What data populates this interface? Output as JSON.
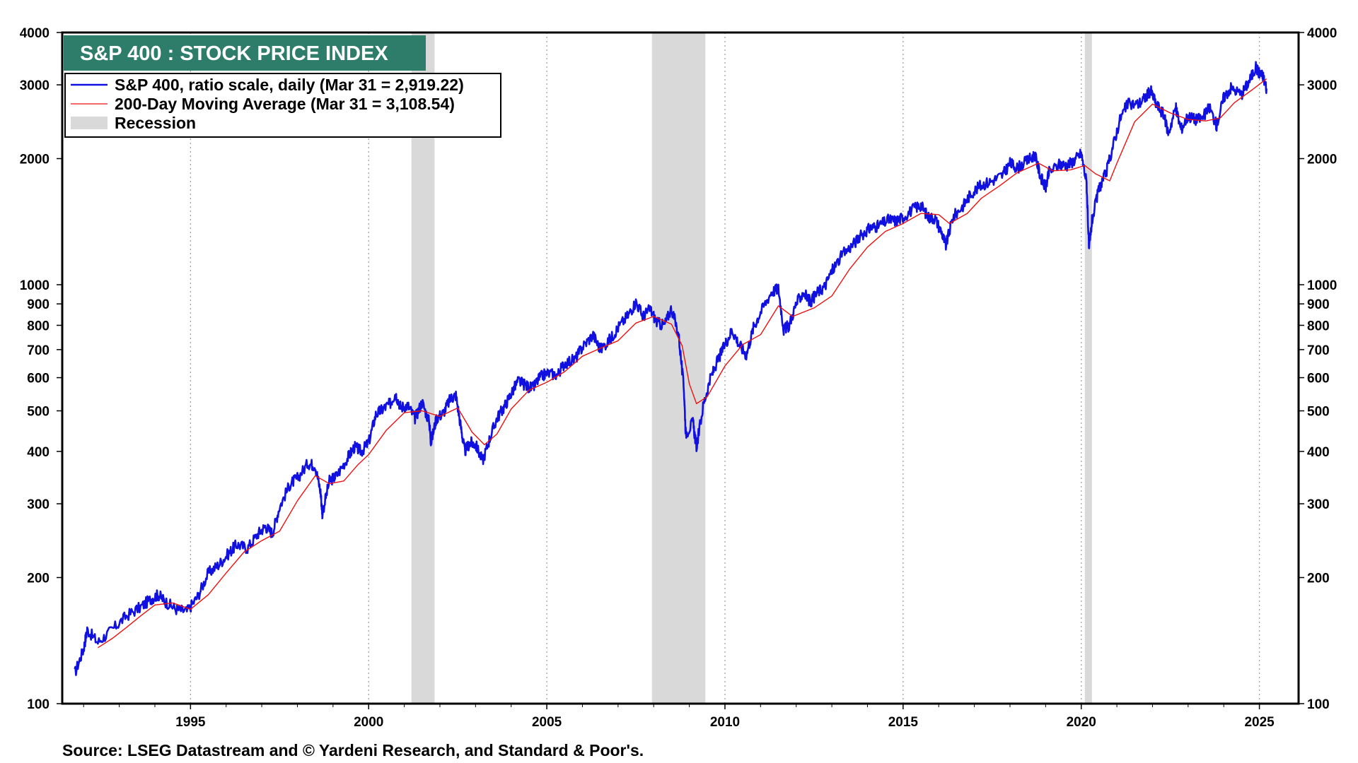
{
  "chart_data": {
    "type": "line",
    "title": "S&P 400 : STOCK PRICE INDEX",
    "source": "Source: LSEG Datastream and © Yardeni Research, and Standard & Poor's.",
    "y_scale": "log",
    "ylim": [
      100,
      4000
    ],
    "xlim": [
      1991.4,
      2026.1
    ],
    "y_ticks": [
      100,
      200,
      300,
      400,
      500,
      600,
      700,
      800,
      900,
      1000,
      2000,
      3000,
      4000
    ],
    "x_ticks": [
      1995,
      2000,
      2005,
      2010,
      2015,
      2020,
      2025
    ],
    "grid": "vertical-dotted",
    "legend_position": "top-left",
    "colors": {
      "index": "#1010e0",
      "moving_average": "#ee1111",
      "recession": "#d9d9d9",
      "title_bg": "#2e7d6b"
    },
    "legend": [
      {
        "label": "S&P 400, ratio scale, daily (Mar 31 = 2,919.22)",
        "color": "#1010e0",
        "kind": "line"
      },
      {
        "label": "200-Day Moving Average (Mar 31 = 3,108.54)",
        "color": "#ee1111",
        "kind": "thin-line"
      },
      {
        "label": "Recession",
        "color": "#d9d9d9",
        "kind": "band"
      }
    ],
    "recessions": [
      {
        "start": 2001.2,
        "end": 2001.85
      },
      {
        "start": 2007.95,
        "end": 2009.45
      },
      {
        "start": 2020.1,
        "end": 2020.3
      }
    ],
    "series": [
      {
        "name": "S&P 400, ratio scale, daily (Mar 31 = 2,919.22)",
        "color": "#1010e0",
        "points": [
          [
            1991.75,
            118
          ],
          [
            1992.0,
            135
          ],
          [
            1992.1,
            150
          ],
          [
            1992.4,
            140
          ],
          [
            1992.8,
            150
          ],
          [
            1993.2,
            162
          ],
          [
            1993.6,
            170
          ],
          [
            1993.9,
            178
          ],
          [
            1994.1,
            182
          ],
          [
            1994.3,
            175
          ],
          [
            1994.6,
            168
          ],
          [
            1994.9,
            166
          ],
          [
            1995.2,
            180
          ],
          [
            1995.5,
            205
          ],
          [
            1995.8,
            215
          ],
          [
            1996.1,
            230
          ],
          [
            1996.3,
            240
          ],
          [
            1996.6,
            235
          ],
          [
            1996.9,
            255
          ],
          [
            1997.1,
            265
          ],
          [
            1997.3,
            255
          ],
          [
            1997.5,
            295
          ],
          [
            1997.8,
            335
          ],
          [
            1998.0,
            345
          ],
          [
            1998.3,
            375
          ],
          [
            1998.5,
            370
          ],
          [
            1998.65,
            320
          ],
          [
            1998.7,
            285
          ],
          [
            1998.9,
            340
          ],
          [
            1999.1,
            350
          ],
          [
            1999.4,
            385
          ],
          [
            1999.6,
            410
          ],
          [
            1999.8,
            400
          ],
          [
            2000.0,
            420
          ],
          [
            2000.2,
            490
          ],
          [
            2000.4,
            505
          ],
          [
            2000.6,
            520
          ],
          [
            2000.75,
            550
          ],
          [
            2000.9,
            510
          ],
          [
            2001.1,
            515
          ],
          [
            2001.3,
            480
          ],
          [
            2001.5,
            525
          ],
          [
            2001.7,
            470
          ],
          [
            2001.75,
            420
          ],
          [
            2001.9,
            480
          ],
          [
            2002.1,
            495
          ],
          [
            2002.3,
            535
          ],
          [
            2002.45,
            545
          ],
          [
            2002.6,
            450
          ],
          [
            2002.7,
            400
          ],
          [
            2002.85,
            420
          ],
          [
            2003.0,
            415
          ],
          [
            2003.2,
            380
          ],
          [
            2003.4,
            430
          ],
          [
            2003.6,
            480
          ],
          [
            2003.8,
            510
          ],
          [
            2004.0,
            550
          ],
          [
            2004.2,
            590
          ],
          [
            2004.4,
            575
          ],
          [
            2004.6,
            565
          ],
          [
            2004.8,
            600
          ],
          [
            2005.0,
            615
          ],
          [
            2005.3,
            610
          ],
          [
            2005.5,
            650
          ],
          [
            2005.8,
            665
          ],
          [
            2006.0,
            710
          ],
          [
            2006.3,
            760
          ],
          [
            2006.5,
            700
          ],
          [
            2006.8,
            745
          ],
          [
            2007.0,
            790
          ],
          [
            2007.3,
            850
          ],
          [
            2007.5,
            910
          ],
          [
            2007.7,
            840
          ],
          [
            2007.9,
            875
          ],
          [
            2008.1,
            810
          ],
          [
            2008.3,
            800
          ],
          [
            2008.5,
            880
          ],
          [
            2008.7,
            760
          ],
          [
            2008.85,
            560
          ],
          [
            2008.9,
            440
          ],
          [
            2009.1,
            470
          ],
          [
            2009.2,
            410
          ],
          [
            2009.4,
            520
          ],
          [
            2009.6,
            600
          ],
          [
            2009.8,
            660
          ],
          [
            2010.0,
            720
          ],
          [
            2010.2,
            780
          ],
          [
            2010.4,
            720
          ],
          [
            2010.6,
            680
          ],
          [
            2010.8,
            790
          ],
          [
            2011.0,
            860
          ],
          [
            2011.3,
            960
          ],
          [
            2011.5,
            980
          ],
          [
            2011.65,
            780
          ],
          [
            2011.8,
            800
          ],
          [
            2012.0,
            900
          ],
          [
            2012.2,
            960
          ],
          [
            2012.4,
            910
          ],
          [
            2012.6,
            960
          ],
          [
            2012.8,
            990
          ],
          [
            2013.0,
            1080
          ],
          [
            2013.3,
            1180
          ],
          [
            2013.6,
            1250
          ],
          [
            2013.9,
            1330
          ],
          [
            2014.1,
            1370
          ],
          [
            2014.3,
            1380
          ],
          [
            2014.6,
            1430
          ],
          [
            2014.8,
            1420
          ],
          [
            2015.0,
            1450
          ],
          [
            2015.3,
            1520
          ],
          [
            2015.5,
            1550
          ],
          [
            2015.7,
            1450
          ],
          [
            2015.9,
            1440
          ],
          [
            2016.1,
            1320
          ],
          [
            2016.2,
            1240
          ],
          [
            2016.4,
            1450
          ],
          [
            2016.7,
            1550
          ],
          [
            2016.9,
            1650
          ],
          [
            2017.2,
            1730
          ],
          [
            2017.5,
            1770
          ],
          [
            2017.8,
            1830
          ],
          [
            2018.0,
            1950
          ],
          [
            2018.2,
            1900
          ],
          [
            2018.5,
            1980
          ],
          [
            2018.7,
            2040
          ],
          [
            2018.85,
            1820
          ],
          [
            2019.0,
            1700
          ],
          [
            2019.1,
            1860
          ],
          [
            2019.4,
            1940
          ],
          [
            2019.6,
            1930
          ],
          [
            2019.8,
            1980
          ],
          [
            2020.0,
            2060
          ],
          [
            2020.15,
            1750
          ],
          [
            2020.22,
            1200
          ],
          [
            2020.3,
            1420
          ],
          [
            2020.5,
            1700
          ],
          [
            2020.7,
            1850
          ],
          [
            2020.9,
            2160
          ],
          [
            2021.1,
            2500
          ],
          [
            2021.3,
            2700
          ],
          [
            2021.6,
            2700
          ],
          [
            2021.8,
            2800
          ],
          [
            2021.95,
            2910
          ],
          [
            2022.1,
            2700
          ],
          [
            2022.3,
            2560
          ],
          [
            2022.45,
            2300
          ],
          [
            2022.65,
            2650
          ],
          [
            2022.8,
            2350
          ],
          [
            2023.0,
            2530
          ],
          [
            2023.2,
            2480
          ],
          [
            2023.4,
            2500
          ],
          [
            2023.6,
            2650
          ],
          [
            2023.8,
            2400
          ],
          [
            2024.0,
            2800
          ],
          [
            2024.2,
            2950
          ],
          [
            2024.5,
            2850
          ],
          [
            2024.7,
            3050
          ],
          [
            2024.9,
            3300
          ],
          [
            2025.0,
            3200
          ],
          [
            2025.1,
            3150
          ],
          [
            2025.2,
            2940
          ]
        ]
      },
      {
        "name": "200-Day Moving Average (Mar 31 = 3,108.54)",
        "color": "#ee1111",
        "points": [
          [
            1992.4,
            136
          ],
          [
            1992.8,
            143
          ],
          [
            1993.2,
            152
          ],
          [
            1993.6,
            162
          ],
          [
            1994.0,
            172
          ],
          [
            1994.5,
            174
          ],
          [
            1995.0,
            168
          ],
          [
            1995.5,
            182
          ],
          [
            1996.0,
            205
          ],
          [
            1996.5,
            230
          ],
          [
            1997.0,
            245
          ],
          [
            1997.5,
            258
          ],
          [
            1998.0,
            305
          ],
          [
            1998.5,
            350
          ],
          [
            1998.9,
            335
          ],
          [
            1999.3,
            340
          ],
          [
            1999.7,
            372
          ],
          [
            2000.0,
            393
          ],
          [
            2000.5,
            450
          ],
          [
            2001.0,
            495
          ],
          [
            2001.5,
            500
          ],
          [
            2002.0,
            485
          ],
          [
            2002.5,
            508
          ],
          [
            2002.9,
            445
          ],
          [
            2003.25,
            415
          ],
          [
            2003.6,
            440
          ],
          [
            2004.0,
            505
          ],
          [
            2004.5,
            560
          ],
          [
            2005.0,
            585
          ],
          [
            2005.5,
            620
          ],
          [
            2006.0,
            675
          ],
          [
            2006.5,
            705
          ],
          [
            2007.0,
            735
          ],
          [
            2007.5,
            810
          ],
          [
            2008.0,
            840
          ],
          [
            2008.5,
            805
          ],
          [
            2008.8,
            715
          ],
          [
            2009.0,
            580
          ],
          [
            2009.2,
            520
          ],
          [
            2009.5,
            540
          ],
          [
            2010.0,
            640
          ],
          [
            2010.5,
            720
          ],
          [
            2011.0,
            760
          ],
          [
            2011.5,
            890
          ],
          [
            2011.9,
            840
          ],
          [
            2012.5,
            880
          ],
          [
            2013.0,
            940
          ],
          [
            2013.5,
            1090
          ],
          [
            2014.0,
            1230
          ],
          [
            2014.5,
            1340
          ],
          [
            2015.0,
            1400
          ],
          [
            2015.5,
            1480
          ],
          [
            2016.0,
            1470
          ],
          [
            2016.3,
            1400
          ],
          [
            2016.8,
            1480
          ],
          [
            2017.2,
            1610
          ],
          [
            2017.7,
            1720
          ],
          [
            2018.2,
            1850
          ],
          [
            2018.8,
            1950
          ],
          [
            2019.2,
            1870
          ],
          [
            2019.7,
            1880
          ],
          [
            2020.1,
            1925
          ],
          [
            2020.4,
            1840
          ],
          [
            2020.8,
            1770
          ],
          [
            2021.0,
            1950
          ],
          [
            2021.5,
            2450
          ],
          [
            2022.0,
            2700
          ],
          [
            2022.5,
            2570
          ],
          [
            2023.0,
            2480
          ],
          [
            2023.5,
            2460
          ],
          [
            2023.9,
            2500
          ],
          [
            2024.3,
            2720
          ],
          [
            2024.8,
            2920
          ],
          [
            2025.2,
            3100
          ]
        ]
      }
    ]
  }
}
